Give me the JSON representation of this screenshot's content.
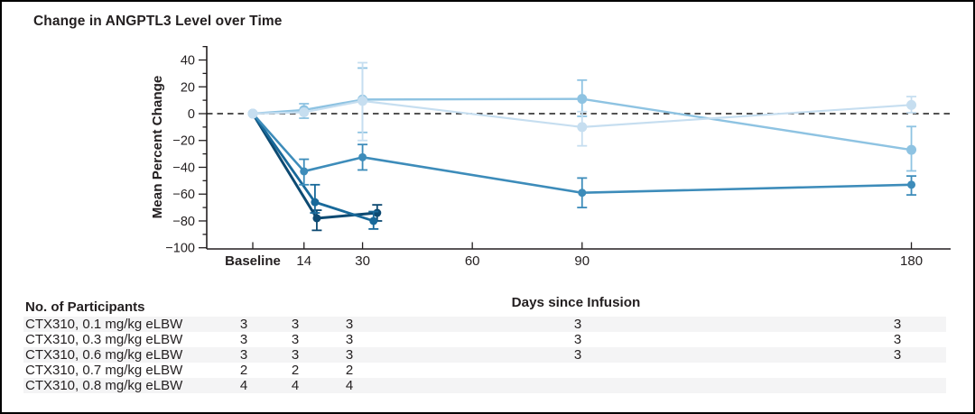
{
  "figure": {
    "title": "Change in ANGPTL3 Level over Time"
  },
  "chart_data": {
    "type": "line",
    "title": "Change in ANGPTL3 Level over Time",
    "xlabel": "Days since Infusion",
    "ylabel": "Mean Percent Change",
    "ylim": [
      -100,
      50
    ],
    "xlim_days": [
      0,
      190
    ],
    "grid": false,
    "legend": false,
    "zero_reference_line": true,
    "y_major_ticks": [
      "40",
      "20",
      "0",
      "−20",
      "−40",
      "−60",
      "−80",
      "−100"
    ],
    "y_major_values": [
      40,
      20,
      0,
      -20,
      -40,
      -60,
      -80,
      -100
    ],
    "y_minor_values": [
      50,
      30,
      10,
      -10,
      -30,
      -50,
      -70,
      -90
    ],
    "x_ticks": [
      {
        "day": 0,
        "label": "Baseline",
        "bold": true
      },
      {
        "day": 14,
        "label": "14",
        "bold": false
      },
      {
        "day": 30,
        "label": "30",
        "bold": false
      },
      {
        "day": 60,
        "label": "60",
        "bold": false
      },
      {
        "day": 90,
        "label": "90",
        "bold": false
      },
      {
        "day": 180,
        "label": "180",
        "bold": false
      }
    ],
    "series": [
      {
        "name": "CTX310, 0.1 mg/kg eLBW",
        "color": "#c6def0",
        "points": [
          {
            "day": 0,
            "mean": 0,
            "err_lo": null,
            "err_hi": null
          },
          {
            "day": 14,
            "mean": 1,
            "err_lo": null,
            "err_hi": null
          },
          {
            "day": 30,
            "mean": 9.5,
            "err_lo": -20,
            "err_hi": 38
          },
          {
            "day": 90,
            "mean": -10,
            "err_lo": -24,
            "err_hi": 1.5
          },
          {
            "day": 180,
            "mean": 6.5,
            "err_lo": 0.7,
            "err_hi": 12.7
          }
        ]
      },
      {
        "name": "CTX310, 0.3 mg/kg eLBW",
        "color": "#8ec3e2",
        "points": [
          {
            "day": 0,
            "mean": 0,
            "err_lo": null,
            "err_hi": null
          },
          {
            "day": 14,
            "mean": 2.7,
            "err_lo": -3.4,
            "err_hi": 7.4
          },
          {
            "day": 30,
            "mean": 10.5,
            "err_lo": -14,
            "err_hi": 34
          },
          {
            "day": 90,
            "mean": 11,
            "err_lo": -2,
            "err_hi": 25
          },
          {
            "day": 180,
            "mean": -27,
            "err_lo": -42.7,
            "err_hi": -9.6
          }
        ]
      },
      {
        "name": "CTX310, 0.6 mg/kg eLBW",
        "color": "#3d8cba",
        "points": [
          {
            "day": 0,
            "mean": 0,
            "err_lo": null,
            "err_hi": null
          },
          {
            "day": 14,
            "mean": -43,
            "err_lo": -53,
            "err_hi": -34
          },
          {
            "day": 30,
            "mean": -32.5,
            "err_lo": -42,
            "err_hi": -23
          },
          {
            "day": 90,
            "mean": -59,
            "err_lo": -70,
            "err_hi": -48
          },
          {
            "day": 180,
            "mean": -53,
            "err_lo": -60.6,
            "err_hi": -46.5
          }
        ]
      },
      {
        "name": "CTX310, 0.7 mg/kg eLBW",
        "color": "#18699a",
        "points": [
          {
            "day": 0,
            "mean": 0,
            "err_lo": null,
            "err_hi": null
          },
          {
            "day": 17,
            "mean": -66,
            "err_lo": -74,
            "err_hi": -53
          },
          {
            "day": 33,
            "mean": -80,
            "err_lo": -86,
            "err_hi": -73
          }
        ]
      },
      {
        "name": "CTX310, 0.8 mg/kg eLBW",
        "color": "#0d4a72",
        "points": [
          {
            "day": 0,
            "mean": 0,
            "err_lo": null,
            "err_hi": null
          },
          {
            "day": 17.5,
            "mean": -78,
            "err_lo": -87,
            "err_hi": -72
          },
          {
            "day": 34,
            "mean": -74,
            "err_lo": -80,
            "err_hi": -68
          }
        ]
      }
    ]
  },
  "participants_table": {
    "header": "No. of Participants",
    "rows": [
      {
        "label": "CTX310, 0.1 mg/kg eLBW",
        "values": [
          "3",
          "3",
          "3",
          "3",
          "3"
        ]
      },
      {
        "label": "CTX310, 0.3 mg/kg eLBW",
        "values": [
          "3",
          "3",
          "3",
          "3",
          "3"
        ]
      },
      {
        "label": "CTX310, 0.6 mg/kg eLBW",
        "values": [
          "3",
          "3",
          "3",
          "3",
          "3"
        ]
      },
      {
        "label": "CTX310, 0.7 mg/kg eLBW",
        "values": [
          "2",
          "2",
          "2",
          "",
          ""
        ]
      },
      {
        "label": "CTX310, 0.8 mg/kg eLBW",
        "values": [
          "4",
          "4",
          "4",
          "",
          ""
        ]
      }
    ]
  }
}
